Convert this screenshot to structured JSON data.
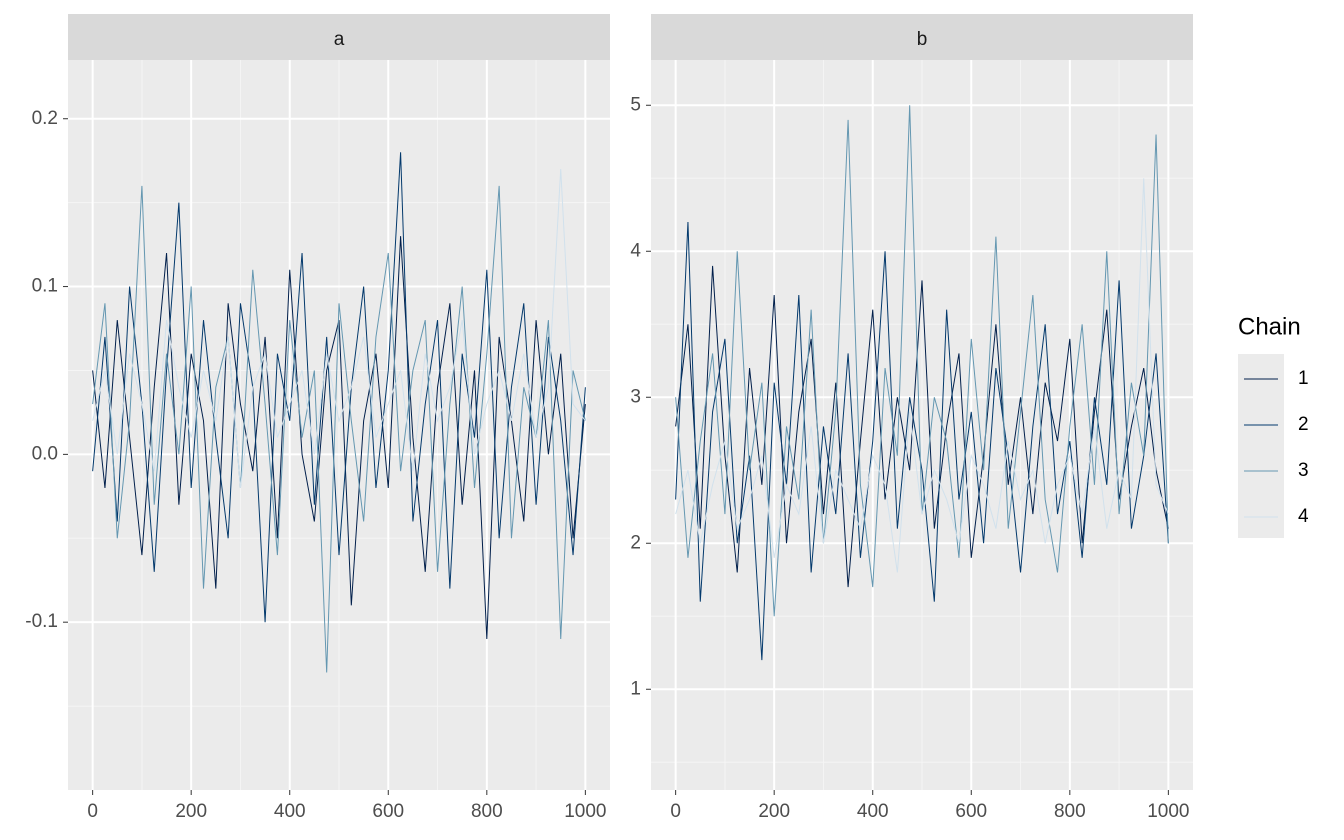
{
  "chart_data": {
    "type": "line",
    "legend_title": "Chain",
    "legend_position": "right",
    "grid": true,
    "x": [
      0,
      25,
      50,
      75,
      100,
      125,
      150,
      175,
      200,
      225,
      250,
      275,
      300,
      325,
      350,
      375,
      400,
      425,
      450,
      475,
      500,
      525,
      550,
      575,
      600,
      625,
      650,
      675,
      700,
      725,
      750,
      775,
      800,
      825,
      850,
      875,
      900,
      925,
      950,
      975,
      1000
    ],
    "xlim": [
      -50,
      1050
    ],
    "xticks": [
      0,
      200,
      400,
      600,
      800,
      1000
    ],
    "chains": [
      {
        "name": "1",
        "color": "#011f4b"
      },
      {
        "name": "2",
        "color": "#03396c"
      },
      {
        "name": "3",
        "color": "#6497b1"
      },
      {
        "name": "4",
        "color": "#d1e1ec"
      }
    ],
    "panels": [
      {
        "title": "a",
        "ylim": [
          -0.2,
          0.235
        ],
        "yticks": [
          {
            "value": -0.1,
            "label": "-0.1"
          },
          {
            "value": 0,
            "label": "0.0"
          },
          {
            "value": 0.1,
            "label": "0.1"
          },
          {
            "value": 0.2,
            "label": "0.2"
          }
        ],
        "series": [
          {
            "values": [
              0.05,
              -0.02,
              0.08,
              0.01,
              -0.06,
              0.04,
              0.12,
              -0.03,
              0.06,
              0.02,
              -0.08,
              0.09,
              0.03,
              -0.01,
              0.07,
              -0.05,
              0.11,
              0.0,
              -0.04,
              0.05,
              0.08,
              -0.09,
              0.02,
              0.06,
              -0.02,
              0.13,
              0.01,
              -0.07,
              0.04,
              0.09,
              -0.03,
              0.05,
              -0.11,
              0.07,
              0.02,
              -0.04,
              0.08,
              0.0,
              0.06,
              -0.05,
              0.03
            ]
          },
          {
            "values": [
              -0.01,
              0.07,
              -0.04,
              0.1,
              0.03,
              -0.07,
              0.05,
              0.15,
              -0.02,
              0.08,
              0.01,
              -0.05,
              0.09,
              0.04,
              -0.1,
              0.06,
              0.02,
              0.12,
              -0.03,
              0.07,
              -0.06,
              0.04,
              0.1,
              -0.02,
              0.05,
              0.18,
              -0.04,
              0.03,
              0.08,
              -0.08,
              0.06,
              0.01,
              0.11,
              -0.05,
              0.04,
              0.09,
              -0.03,
              0.07,
              0.02,
              -0.06,
              0.04
            ]
          },
          {
            "values": [
              0.03,
              0.09,
              -0.05,
              0.02,
              0.16,
              -0.03,
              0.06,
              0.0,
              0.1,
              -0.08,
              0.04,
              0.07,
              -0.02,
              0.11,
              0.03,
              -0.06,
              0.08,
              0.01,
              0.05,
              -0.13,
              0.09,
              0.02,
              -0.04,
              0.07,
              0.12,
              -0.01,
              0.05,
              0.08,
              -0.07,
              0.03,
              0.1,
              -0.02,
              0.06,
              0.16,
              -0.05,
              0.04,
              0.01,
              0.08,
              -0.11,
              0.05,
              0.02
            ]
          },
          {
            "values": [
              0.02,
              0.05,
              0.0,
              0.06,
              0.03,
              -0.01,
              0.08,
              0.04,
              0.01,
              0.05,
              0.02,
              0.07,
              -0.02,
              0.04,
              0.06,
              0.01,
              0.03,
              0.05,
              0.0,
              0.06,
              0.02,
              0.04,
              0.07,
              0.01,
              0.03,
              0.05,
              -0.01,
              0.06,
              0.02,
              0.04,
              0.08,
              0.0,
              0.03,
              0.05,
              0.02,
              0.06,
              0.01,
              0.04,
              0.17,
              0.03,
              0.02
            ]
          }
        ]
      },
      {
        "title": "b",
        "ylim": [
          0.31,
          5.31
        ],
        "yticks": [
          1,
          2,
          3,
          4,
          5
        ],
        "series": [
          {
            "values": [
              2.8,
              3.5,
              2.1,
              3.9,
              2.6,
              1.8,
              3.2,
              2.4,
              3.7,
              2.0,
              2.9,
              3.4,
              2.2,
              3.1,
              1.7,
              2.7,
              3.6,
              2.3,
              3.0,
              2.5,
              3.8,
              2.1,
              2.8,
              3.3,
              1.9,
              2.6,
              3.5,
              2.4,
              3.0,
              2.2,
              3.1,
              2.7,
              3.4,
              2.0,
              2.9,
              3.6,
              2.3,
              2.8,
              3.2,
              2.5,
              2.1
            ]
          },
          {
            "values": [
              2.3,
              4.2,
              1.6,
              2.9,
              3.4,
              2.0,
              2.6,
              1.2,
              3.1,
              2.4,
              3.7,
              1.8,
              2.8,
              2.2,
              3.3,
              1.9,
              2.7,
              4.0,
              2.1,
              3.0,
              2.5,
              1.6,
              3.6,
              2.3,
              2.9,
              2.0,
              3.2,
              2.6,
              1.8,
              2.8,
              3.5,
              2.2,
              2.7,
              1.9,
              3.0,
              2.4,
              3.8,
              2.1,
              2.6,
              3.3,
              2.0
            ]
          },
          {
            "values": [
              3.0,
              1.9,
              2.7,
              3.3,
              2.2,
              4.0,
              2.5,
              3.1,
              1.5,
              2.8,
              2.3,
              3.6,
              2.0,
              2.9,
              4.9,
              2.4,
              1.7,
              3.2,
              2.6,
              5.0,
              2.2,
              3.0,
              2.7,
              1.9,
              3.4,
              2.5,
              4.1,
              2.1,
              2.9,
              3.7,
              2.3,
              1.8,
              2.8,
              3.5,
              2.4,
              4.0,
              2.2,
              3.1,
              2.6,
              4.8,
              2.0
            ]
          },
          {
            "values": [
              2.2,
              2.5,
              2.0,
              2.4,
              2.7,
              2.1,
              2.3,
              2.6,
              1.9,
              2.4,
              2.2,
              2.8,
              2.0,
              2.5,
              2.3,
              2.1,
              2.6,
              2.4,
              1.8,
              2.9,
              2.2,
              2.5,
              2.3,
              2.0,
              2.6,
              2.4,
              2.1,
              2.7,
              2.3,
              2.5,
              2.0,
              2.4,
              2.6,
              2.2,
              2.8,
              2.1,
              2.5,
              2.3,
              4.5,
              2.4,
              2.2
            ]
          }
        ]
      }
    ]
  }
}
